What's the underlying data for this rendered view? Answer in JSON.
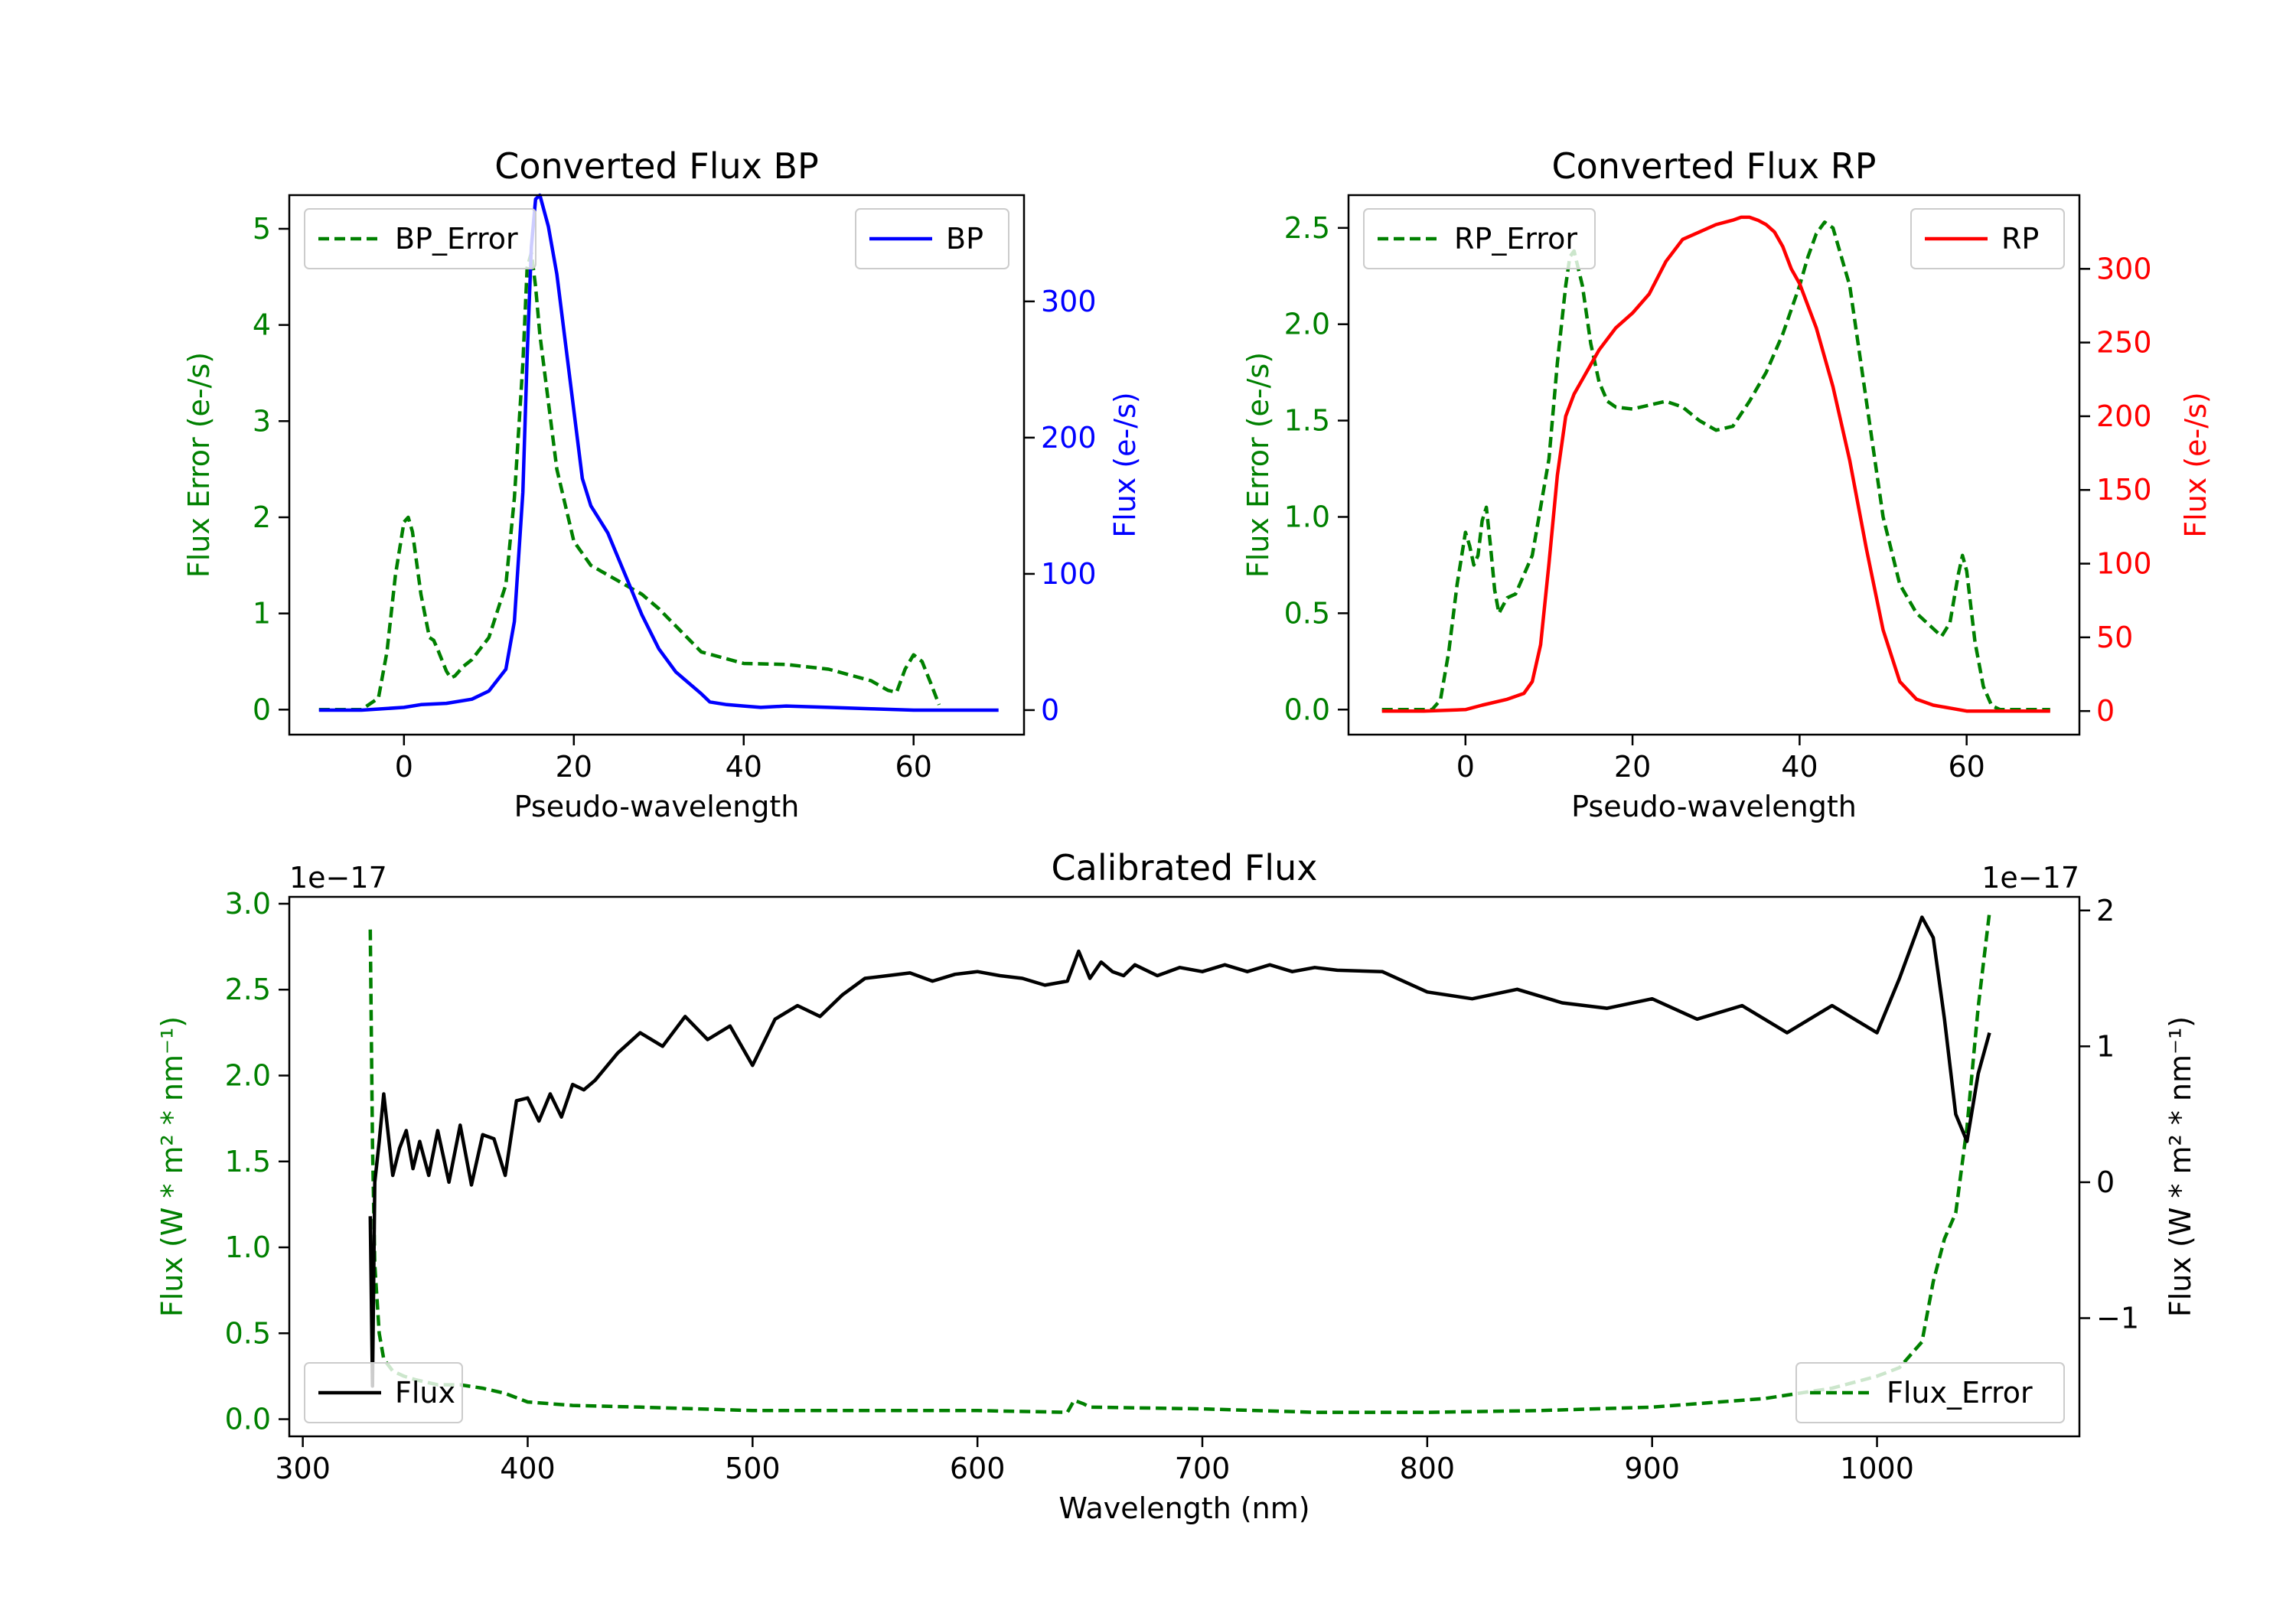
{
  "chart_data": [
    {
      "id": "bp",
      "type": "line",
      "title": "Converted Flux BP",
      "xlabel": "Pseudo-wavelength",
      "ylabel_left": "Flux Error (e-/s)",
      "ylabel_right": "Flux (e-/s)",
      "xlim": [
        -13.5,
        73
      ],
      "ylim_left": [
        -0.26,
        5.35
      ],
      "ylim_right": [
        -18,
        378
      ],
      "xticks": [
        "0",
        "20",
        "40",
        "60"
      ],
      "yticks_left": [
        "0",
        "1",
        "2",
        "3",
        "4",
        "5"
      ],
      "yticks_right": [
        "0",
        "100",
        "200",
        "300"
      ],
      "legend_left": "BP_Error",
      "legend_right": "BP",
      "colors": {
        "error": "#008000",
        "flux": "#0000ff",
        "left_axis": "#008000",
        "right_axis": "#0000ff"
      },
      "series": [
        {
          "name": "BP_Error",
          "axis": "left",
          "style": "dashed",
          "x": [
            -10,
            -5,
            -3,
            -2,
            -1,
            0,
            0.5,
            1,
            2,
            3,
            3.5,
            4,
            5,
            5.5,
            6,
            7,
            8,
            10,
            12,
            13,
            14,
            14.5,
            15,
            15.5,
            16,
            17,
            18,
            20,
            22,
            24,
            26,
            28,
            30,
            35,
            40,
            45,
            50,
            55,
            57,
            58,
            59,
            60,
            61,
            62,
            63
          ],
          "y": [
            0,
            0,
            0.12,
            0.6,
            1.4,
            1.95,
            2.0,
            1.85,
            1.2,
            0.75,
            0.72,
            0.62,
            0.4,
            0.33,
            0.35,
            0.45,
            0.52,
            0.75,
            1.3,
            2.2,
            3.6,
            4.6,
            4.75,
            4.4,
            3.9,
            3.2,
            2.5,
            1.75,
            1.5,
            1.4,
            1.3,
            1.2,
            1.05,
            0.6,
            0.48,
            0.47,
            0.42,
            0.3,
            0.2,
            0.18,
            0.42,
            0.57,
            0.5,
            0.28,
            0.05
          ]
        },
        {
          "name": "BP",
          "axis": "right",
          "style": "solid",
          "x": [
            -10,
            -5,
            0,
            2,
            5,
            8,
            10,
            12,
            13,
            14,
            14.5,
            15,
            15.5,
            16,
            17,
            18,
            19,
            20,
            21,
            22,
            23,
            24,
            25,
            26,
            28,
            30,
            32,
            35,
            36,
            38,
            40,
            42,
            45,
            50,
            55,
            60,
            65,
            70
          ],
          "y": [
            0,
            0,
            2,
            4,
            5,
            8,
            14,
            30,
            65,
            160,
            260,
            340,
            375,
            378,
            355,
            320,
            270,
            220,
            170,
            150,
            140,
            130,
            115,
            100,
            70,
            45,
            28,
            12,
            6,
            4,
            3,
            2,
            3,
            2,
            1,
            0,
            0,
            0
          ]
        }
      ]
    },
    {
      "id": "rp",
      "type": "line",
      "title": "Converted Flux RP",
      "xlabel": "Pseudo-wavelength",
      "ylabel_left": "Flux Error (e-/s)",
      "ylabel_right": "Flux (e-/s)",
      "xlim": [
        -14,
        73.5
      ],
      "ylim_left": [
        -0.13,
        2.67
      ],
      "ylim_right": [
        -16,
        350
      ],
      "xticks": [
        "0",
        "20",
        "40",
        "60"
      ],
      "yticks_left": [
        "0.0",
        "0.5",
        "1.0",
        "1.5",
        "2.0",
        "2.5"
      ],
      "yticks_right": [
        "0",
        "50",
        "100",
        "150",
        "200",
        "250",
        "300"
      ],
      "legend_left": "RP_Error",
      "legend_right": "RP",
      "colors": {
        "error": "#008000",
        "flux": "#ff0000",
        "left_axis": "#008000",
        "right_axis": "#ff0000"
      },
      "series": [
        {
          "name": "RP_Error",
          "axis": "left",
          "style": "dashed",
          "x": [
            -10,
            -4,
            -3,
            -2,
            -1,
            0,
            0.5,
            1,
            1.5,
            2,
            2.5,
            3,
            3.5,
            4,
            5,
            6,
            8,
            10,
            11,
            12,
            12.5,
            13,
            14,
            15,
            16,
            17,
            18,
            20,
            22,
            24,
            26,
            28,
            30,
            32,
            34,
            36,
            38,
            40,
            41,
            42,
            43,
            44,
            46,
            48,
            50,
            52,
            54,
            56,
            57,
            58,
            59,
            59.5,
            60,
            61,
            62,
            63,
            64,
            70
          ],
          "y": [
            0,
            0,
            0.05,
            0.3,
            0.65,
            0.92,
            0.85,
            0.75,
            0.8,
            0.98,
            1.05,
            0.85,
            0.62,
            0.5,
            0.58,
            0.6,
            0.8,
            1.3,
            1.8,
            2.2,
            2.35,
            2.38,
            2.2,
            1.9,
            1.7,
            1.6,
            1.57,
            1.56,
            1.58,
            1.6,
            1.57,
            1.5,
            1.45,
            1.47,
            1.6,
            1.75,
            1.95,
            2.2,
            2.35,
            2.47,
            2.53,
            2.5,
            2.2,
            1.6,
            1.0,
            0.65,
            0.5,
            0.42,
            0.38,
            0.45,
            0.7,
            0.8,
            0.72,
            0.35,
            0.12,
            0.02,
            0,
            0
          ]
        },
        {
          "name": "RP",
          "axis": "right",
          "style": "solid",
          "x": [
            -10,
            -5,
            0,
            2,
            5,
            7,
            8,
            9,
            10,
            11,
            12,
            13,
            14,
            15,
            16,
            18,
            20,
            22,
            24,
            26,
            28,
            30,
            32,
            33,
            34,
            35,
            36,
            37,
            38,
            39,
            40,
            42,
            44,
            46,
            48,
            50,
            52,
            54,
            56,
            58,
            60,
            65,
            70
          ],
          "y": [
            0,
            0,
            1,
            4,
            8,
            12,
            20,
            45,
            100,
            160,
            200,
            215,
            225,
            235,
            245,
            260,
            270,
            283,
            305,
            320,
            325,
            330,
            333,
            335,
            335,
            333,
            330,
            325,
            315,
            300,
            290,
            260,
            220,
            170,
            110,
            55,
            20,
            8,
            4,
            2,
            0,
            0,
            0
          ]
        }
      ]
    },
    {
      "id": "cal",
      "type": "line",
      "title": "Calibrated Flux",
      "xlabel": "Wavelength (nm)",
      "ylabel_left": "Flux (W * m² * nm⁻¹)",
      "ylabel_right": "Flux (W * m² * nm⁻¹)",
      "xlim": [
        294,
        1090
      ],
      "ylim_left": [
        -0.1,
        3.04
      ],
      "ylim_right": [
        -1.87,
        2.1
      ],
      "offset_left": "1e−17",
      "offset_right": "1e−17",
      "xticks": [
        "300",
        "400",
        "500",
        "600",
        "700",
        "800",
        "900",
        "1000"
      ],
      "yticks_left": [
        "0.0",
        "0.5",
        "1.0",
        "1.5",
        "2.0",
        "2.5",
        "3.0"
      ],
      "yticks_right": [
        "−1",
        "0",
        "1",
        "2"
      ],
      "legend_left": "Flux",
      "legend_right": "Flux_Error",
      "colors": {
        "error": "#008000",
        "flux": "#000000",
        "left_axis": "#008000",
        "right_axis": "#000000"
      },
      "series": [
        {
          "name": "Flux_Error",
          "axis": "left",
          "style": "dashed",
          "x": [
            330,
            331,
            332,
            334,
            336,
            340,
            345,
            350,
            360,
            370,
            380,
            390,
            400,
            420,
            450,
            500,
            600,
            640,
            643,
            647,
            650,
            700,
            750,
            800,
            850,
            900,
            950,
            980,
            1000,
            1010,
            1020,
            1025,
            1030,
            1035,
            1040,
            1045,
            1050
          ],
          "y": [
            2.85,
            1.6,
            0.9,
            0.5,
            0.35,
            0.28,
            0.25,
            0.23,
            0.2,
            0.2,
            0.18,
            0.15,
            0.1,
            0.08,
            0.07,
            0.05,
            0.05,
            0.04,
            0.11,
            0.09,
            0.07,
            0.06,
            0.04,
            0.04,
            0.05,
            0.07,
            0.12,
            0.18,
            0.25,
            0.3,
            0.45,
            0.8,
            1.05,
            1.2,
            1.7,
            2.4,
            2.95
          ]
        },
        {
          "name": "Flux",
          "axis": "right",
          "style": "solid",
          "x": [
            330,
            331,
            332,
            334,
            336,
            338,
            340,
            343,
            346,
            349,
            352,
            356,
            360,
            365,
            370,
            375,
            380,
            385,
            390,
            395,
            400,
            405,
            410,
            415,
            420,
            425,
            430,
            440,
            450,
            460,
            470,
            480,
            490,
            500,
            510,
            520,
            530,
            540,
            550,
            560,
            570,
            580,
            590,
            600,
            610,
            620,
            630,
            640,
            645,
            650,
            655,
            660,
            665,
            670,
            680,
            690,
            700,
            710,
            720,
            730,
            740,
            750,
            760,
            780,
            800,
            820,
            840,
            860,
            880,
            900,
            920,
            940,
            960,
            980,
            1000,
            1010,
            1020,
            1025,
            1030,
            1035,
            1040,
            1045,
            1050
          ],
          "y": [
            -0.25,
            -1.5,
            0,
            0.3,
            0.65,
            0.35,
            0.05,
            0.25,
            0.38,
            0.1,
            0.3,
            0.05,
            0.38,
            0,
            0.42,
            -0.02,
            0.35,
            0.32,
            0.05,
            0.6,
            0.62,
            0.45,
            0.65,
            0.48,
            0.72,
            0.68,
            0.75,
            0.95,
            1.1,
            1.0,
            1.22,
            1.05,
            1.15,
            0.86,
            1.2,
            1.3,
            1.22,
            1.38,
            1.5,
            1.52,
            1.54,
            1.48,
            1.53,
            1.55,
            1.52,
            1.5,
            1.45,
            1.48,
            1.7,
            1.5,
            1.62,
            1.55,
            1.52,
            1.6,
            1.52,
            1.58,
            1.55,
            1.6,
            1.55,
            1.6,
            1.55,
            1.58,
            1.56,
            1.55,
            1.4,
            1.35,
            1.42,
            1.32,
            1.28,
            1.35,
            1.2,
            1.3,
            1.1,
            1.3,
            1.1,
            1.5,
            1.95,
            1.8,
            1.2,
            0.5,
            0.3,
            0.8,
            1.1
          ]
        }
      ]
    }
  ]
}
